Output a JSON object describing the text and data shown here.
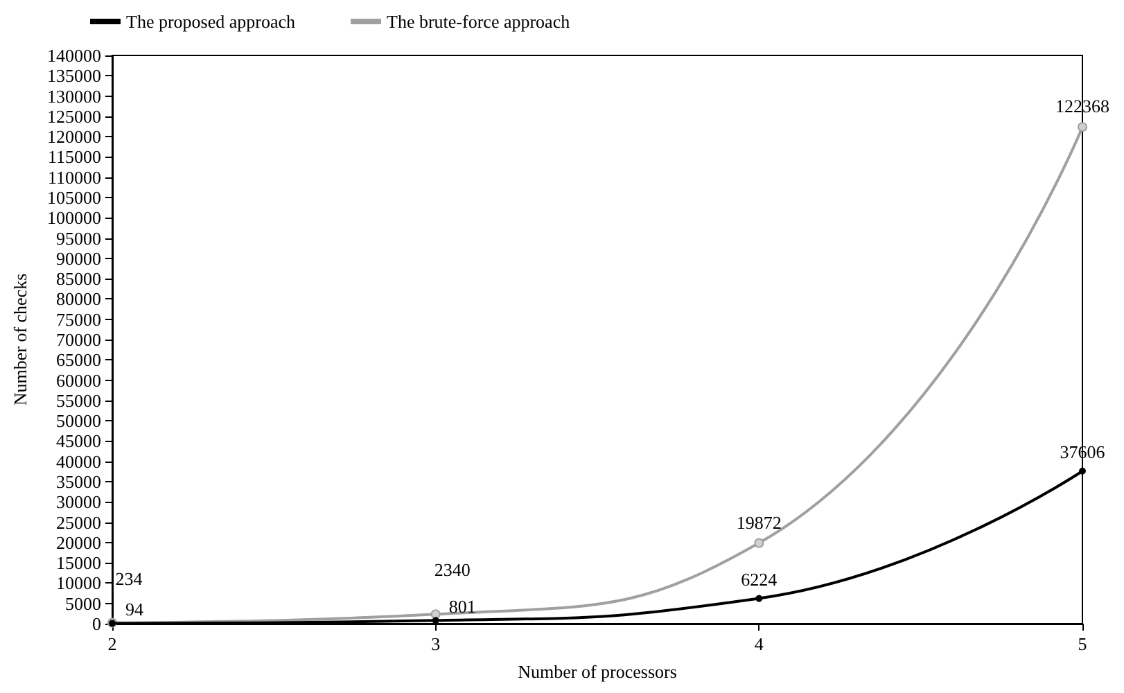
{
  "chart_data": {
    "type": "line",
    "xlabel": "Number of processors",
    "ylabel": "Number of checks",
    "x": [
      2,
      3,
      4,
      5
    ],
    "xlim": [
      2,
      5
    ],
    "xticks": [
      2,
      3,
      4,
      5
    ],
    "ylim": [
      0,
      140000
    ],
    "yticks": [
      0,
      5000,
      10000,
      15000,
      20000,
      25000,
      30000,
      35000,
      40000,
      45000,
      50000,
      55000,
      60000,
      65000,
      70000,
      75000,
      80000,
      85000,
      90000,
      95000,
      100000,
      105000,
      110000,
      115000,
      120000,
      125000,
      130000,
      135000,
      140000
    ],
    "series": [
      {
        "name": "The proposed approach",
        "color": "#000000",
        "values": [
          94,
          801,
          6224,
          37606
        ]
      },
      {
        "name": "The brute-force approach",
        "color": "#a0a0a0",
        "values": [
          234,
          2340,
          19872,
          122368
        ]
      }
    ],
    "marker": "circle",
    "data_labels": true,
    "grid": false,
    "legend": "top left"
  }
}
